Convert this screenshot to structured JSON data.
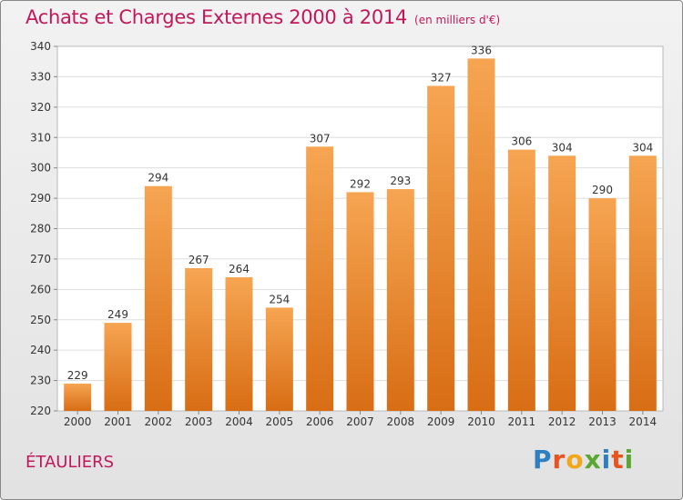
{
  "title": "Achats et Charges Externes 2000 à 2014",
  "unit": "(en milliers d'€)",
  "place": "ÉTAULIERS",
  "logo": {
    "letters": [
      "P",
      "r",
      "o",
      "x",
      "i",
      "t",
      "i"
    ],
    "colors": [
      "#2e7fc2",
      "#e8541e",
      "#f2a71b",
      "#5aa832",
      "#2e7fc2",
      "#e8541e",
      "#5aa832"
    ]
  },
  "chart_data": {
    "type": "bar",
    "categories": [
      "2000",
      "2001",
      "2002",
      "2003",
      "2004",
      "2005",
      "2006",
      "2007",
      "2008",
      "2009",
      "2010",
      "2011",
      "2012",
      "2013",
      "2014"
    ],
    "values": [
      229,
      249,
      294,
      267,
      264,
      254,
      307,
      292,
      293,
      327,
      336,
      306,
      304,
      290,
      304
    ],
    "ylim": [
      220,
      340
    ],
    "yticks": [
      220,
      230,
      240,
      250,
      260,
      270,
      280,
      290,
      300,
      310,
      320,
      330,
      340
    ],
    "grid": true,
    "bar_color_top": "#f6a552",
    "bar_color_bottom": "#d86d14"
  }
}
